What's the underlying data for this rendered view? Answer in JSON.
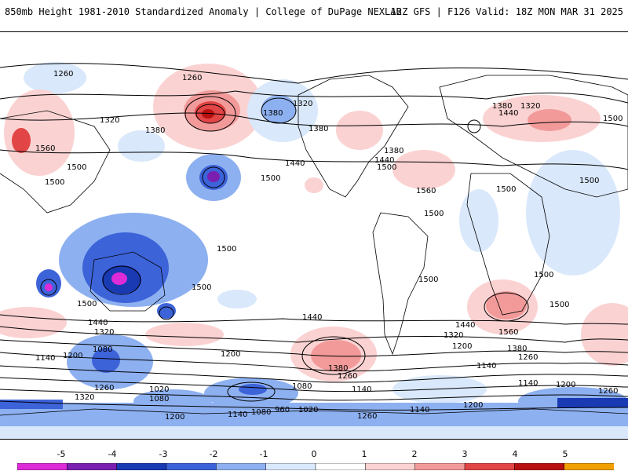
{
  "header": {
    "left_title": "850mb Height 1981-2010 Standardized Anomaly | College of DuPage NEXLAB",
    "right_title": "12Z GFS | F126 Valid: 18Z MON MAR 31 2025"
  },
  "contour_labels": [
    "1260",
    "1320",
    "1260",
    "1320",
    "1380",
    "1320",
    "1380",
    "1440",
    "1380",
    "1500",
    "1560",
    "1380",
    "1500",
    "1500",
    "1440",
    "1500",
    "1380",
    "1440",
    "1500",
    "1560",
    "1500",
    "1500",
    "1500",
    "1500",
    "1500",
    "1500",
    "1500",
    "1500",
    "1440",
    "1320",
    "1080",
    "1140",
    "1200",
    "1200",
    "1260",
    "1020",
    "1080",
    "1200",
    "1140",
    "1080",
    "960",
    "1020",
    "1080",
    "1140",
    "1260",
    "1380",
    "1260",
    "1140",
    "1200",
    "1320",
    "1440",
    "1380",
    "1260",
    "1200",
    "1140",
    "1560",
    "1440",
    "1500",
    "1200",
    "1260",
    "1140",
    "1320"
  ],
  "colorbar": {
    "labels": [
      "-5",
      "-4",
      "-3",
      "-2",
      "-1",
      "0",
      "1",
      "2",
      "3",
      "4",
      "5"
    ],
    "colors": [
      "#dd2bd8",
      "#7a1fb0",
      "#1a3ab4",
      "#3d63d9",
      "#8db0f0",
      "#d9e8fb",
      "#ffffff",
      "#fbd2d2",
      "#f29a9a",
      "#e24545",
      "#b81010",
      "#f0a000"
    ]
  }
}
